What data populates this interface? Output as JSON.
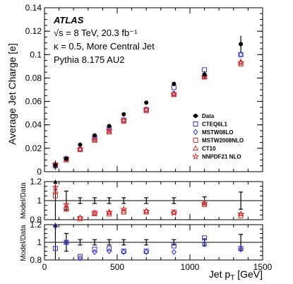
{
  "figure": {
    "experiment": "ATLAS",
    "info_lines": [
      "√s = 8 TeV, 20.3 fb⁻¹",
      "κ = 0.5, More Central Jet",
      "Pythia 8.175 AU2"
    ],
    "legend_position": "right-middle"
  },
  "chart_data": [
    {
      "panel": "main",
      "type": "scatter",
      "xlabel": "Jet p_T [GeV]",
      "xlabel_base": "Jet p",
      "xlabel_sub": "T",
      "xlabel_unit": " [GeV]",
      "ylabel": "Average Jet Charge [e]",
      "xlim": [
        0,
        1500
      ],
      "ylim": [
        0,
        0.14
      ],
      "x_ticks": [
        0,
        500,
        1000,
        1500
      ],
      "y_ticks": [
        0,
        0.02,
        0.04,
        0.06,
        0.08,
        0.1,
        0.12,
        0.14
      ],
      "y_tick_labels": [
        "0",
        "0.02",
        "0.04",
        "0.06",
        "0.08",
        "0.1",
        "0.12",
        "0.14"
      ],
      "x": [
        75,
        150,
        245,
        345,
        445,
        545,
        700,
        890,
        1100,
        1350
      ],
      "series": [
        {
          "name": "Data",
          "marker": "dot",
          "color": "#000000",
          "values": [
            0.0055,
            0.011,
            0.023,
            0.031,
            0.039,
            0.049,
            0.059,
            0.075,
            0.083,
            0.109
          ],
          "errors": [
            0.004,
            0.0015,
            0.0012,
            0.0012,
            0.0012,
            0.0014,
            0.0016,
            0.002,
            0.003,
            0.007
          ]
        },
        {
          "name": "CTEQ6L1",
          "marker": "square",
          "color": "#3333cc",
          "values": [
            0.005,
            0.011,
            0.019,
            0.029,
            0.037,
            0.044,
            0.053,
            0.072,
            0.087,
            0.1
          ]
        },
        {
          "name": "MSTW08LO",
          "marker": "diamond",
          "color": "#3333cc",
          "values": [
            0.0058,
            0.011,
            0.019,
            0.029,
            0.036,
            0.044,
            0.053,
            0.067,
            0.081,
            0.1
          ]
        },
        {
          "name": "MSTW2008NLO",
          "marker": "square",
          "color": "#cc3333",
          "values": [
            0.0058,
            0.01,
            0.019,
            0.027,
            0.034,
            0.043,
            0.052,
            0.066,
            0.081,
            0.092
          ]
        },
        {
          "name": "CT10",
          "marker": "triangle",
          "color": "#cc3333",
          "values": [
            0.006,
            0.011,
            0.019,
            0.027,
            0.034,
            0.044,
            0.053,
            0.066,
            0.081,
            0.094
          ]
        },
        {
          "name": "NNPDF21 NLO",
          "marker": "star",
          "color": "#cc3333",
          "values": [
            0.006,
            0.011,
            0.019,
            0.027,
            0.035,
            0.044,
            0.053,
            0.066,
            0.081,
            0.093
          ]
        }
      ]
    },
    {
      "panel": "ratio-nlo",
      "type": "scatter",
      "ylabel": "Model/Data",
      "xlim": [
        0,
        1500
      ],
      "ylim": [
        0.8,
        1.2
      ],
      "y_ticks": [
        0.8,
        1,
        1.2
      ],
      "y_tick_labels": [
        "0.8",
        "1",
        "1.2"
      ],
      "x": [
        75,
        150,
        245,
        345,
        445,
        545,
        700,
        890,
        1100,
        1350
      ],
      "data_band": {
        "values": [
          1,
          1,
          1,
          1,
          1,
          1,
          1,
          1,
          1,
          1
        ],
        "errors": [
          0.3,
          0.1,
          0.03,
          0.03,
          0.03,
          0.03,
          0.03,
          0.03,
          0.04,
          0.09
        ]
      },
      "series": [
        {
          "name": "MSTW2008NLO",
          "marker": "square",
          "color": "#cc3333",
          "values": [
            1.05,
            0.91,
            0.81,
            0.87,
            0.86,
            0.88,
            0.88,
            0.88,
            0.96,
            0.84
          ]
        },
        {
          "name": "CT10",
          "marker": "triangle",
          "color": "#cc3333",
          "values": [
            1.1,
            0.93,
            0.82,
            0.86,
            0.87,
            0.89,
            0.89,
            0.88,
            0.98,
            0.86
          ]
        },
        {
          "name": "NNPDF21 NLO",
          "marker": "star",
          "color": "#cc3333",
          "values": [
            1.14,
            0.96,
            0.82,
            0.87,
            0.88,
            0.91,
            0.89,
            0.87,
            0.97,
            0.86
          ]
        }
      ]
    },
    {
      "panel": "ratio-lo",
      "type": "scatter",
      "ylabel": "Model/Data",
      "xlim": [
        0,
        1500
      ],
      "ylim": [
        0.8,
        1.2
      ],
      "y_ticks": [
        0.8,
        1,
        1.2
      ],
      "y_tick_labels": [
        "0.8",
        "1",
        "1.2"
      ],
      "x_ticks": [
        0,
        500,
        1000,
        1500
      ],
      "x_tick_labels": [
        "0",
        "500",
        "1000",
        "1500"
      ],
      "x": [
        75,
        150,
        245,
        345,
        445,
        545,
        700,
        890,
        1100,
        1350
      ],
      "data_band": {
        "values": [
          1,
          1,
          1,
          1,
          1,
          1,
          1,
          1,
          1,
          1
        ],
        "errors": [
          0.3,
          0.1,
          0.03,
          0.03,
          0.03,
          0.03,
          0.03,
          0.03,
          0.04,
          0.09
        ]
      },
      "series": [
        {
          "name": "CTEQ6L1",
          "marker": "square",
          "color": "#3333cc",
          "values": [
            0.93,
            1.0,
            0.84,
            0.92,
            0.93,
            0.9,
            0.9,
            0.96,
            1.05,
            0.93
          ]
        },
        {
          "name": "MSTW08LO",
          "marker": "diamond",
          "color": "#3333cc",
          "values": [
            1.18,
            1.0,
            0.82,
            0.89,
            0.9,
            0.89,
            0.89,
            0.89,
            0.98,
            0.92
          ]
        }
      ]
    }
  ]
}
